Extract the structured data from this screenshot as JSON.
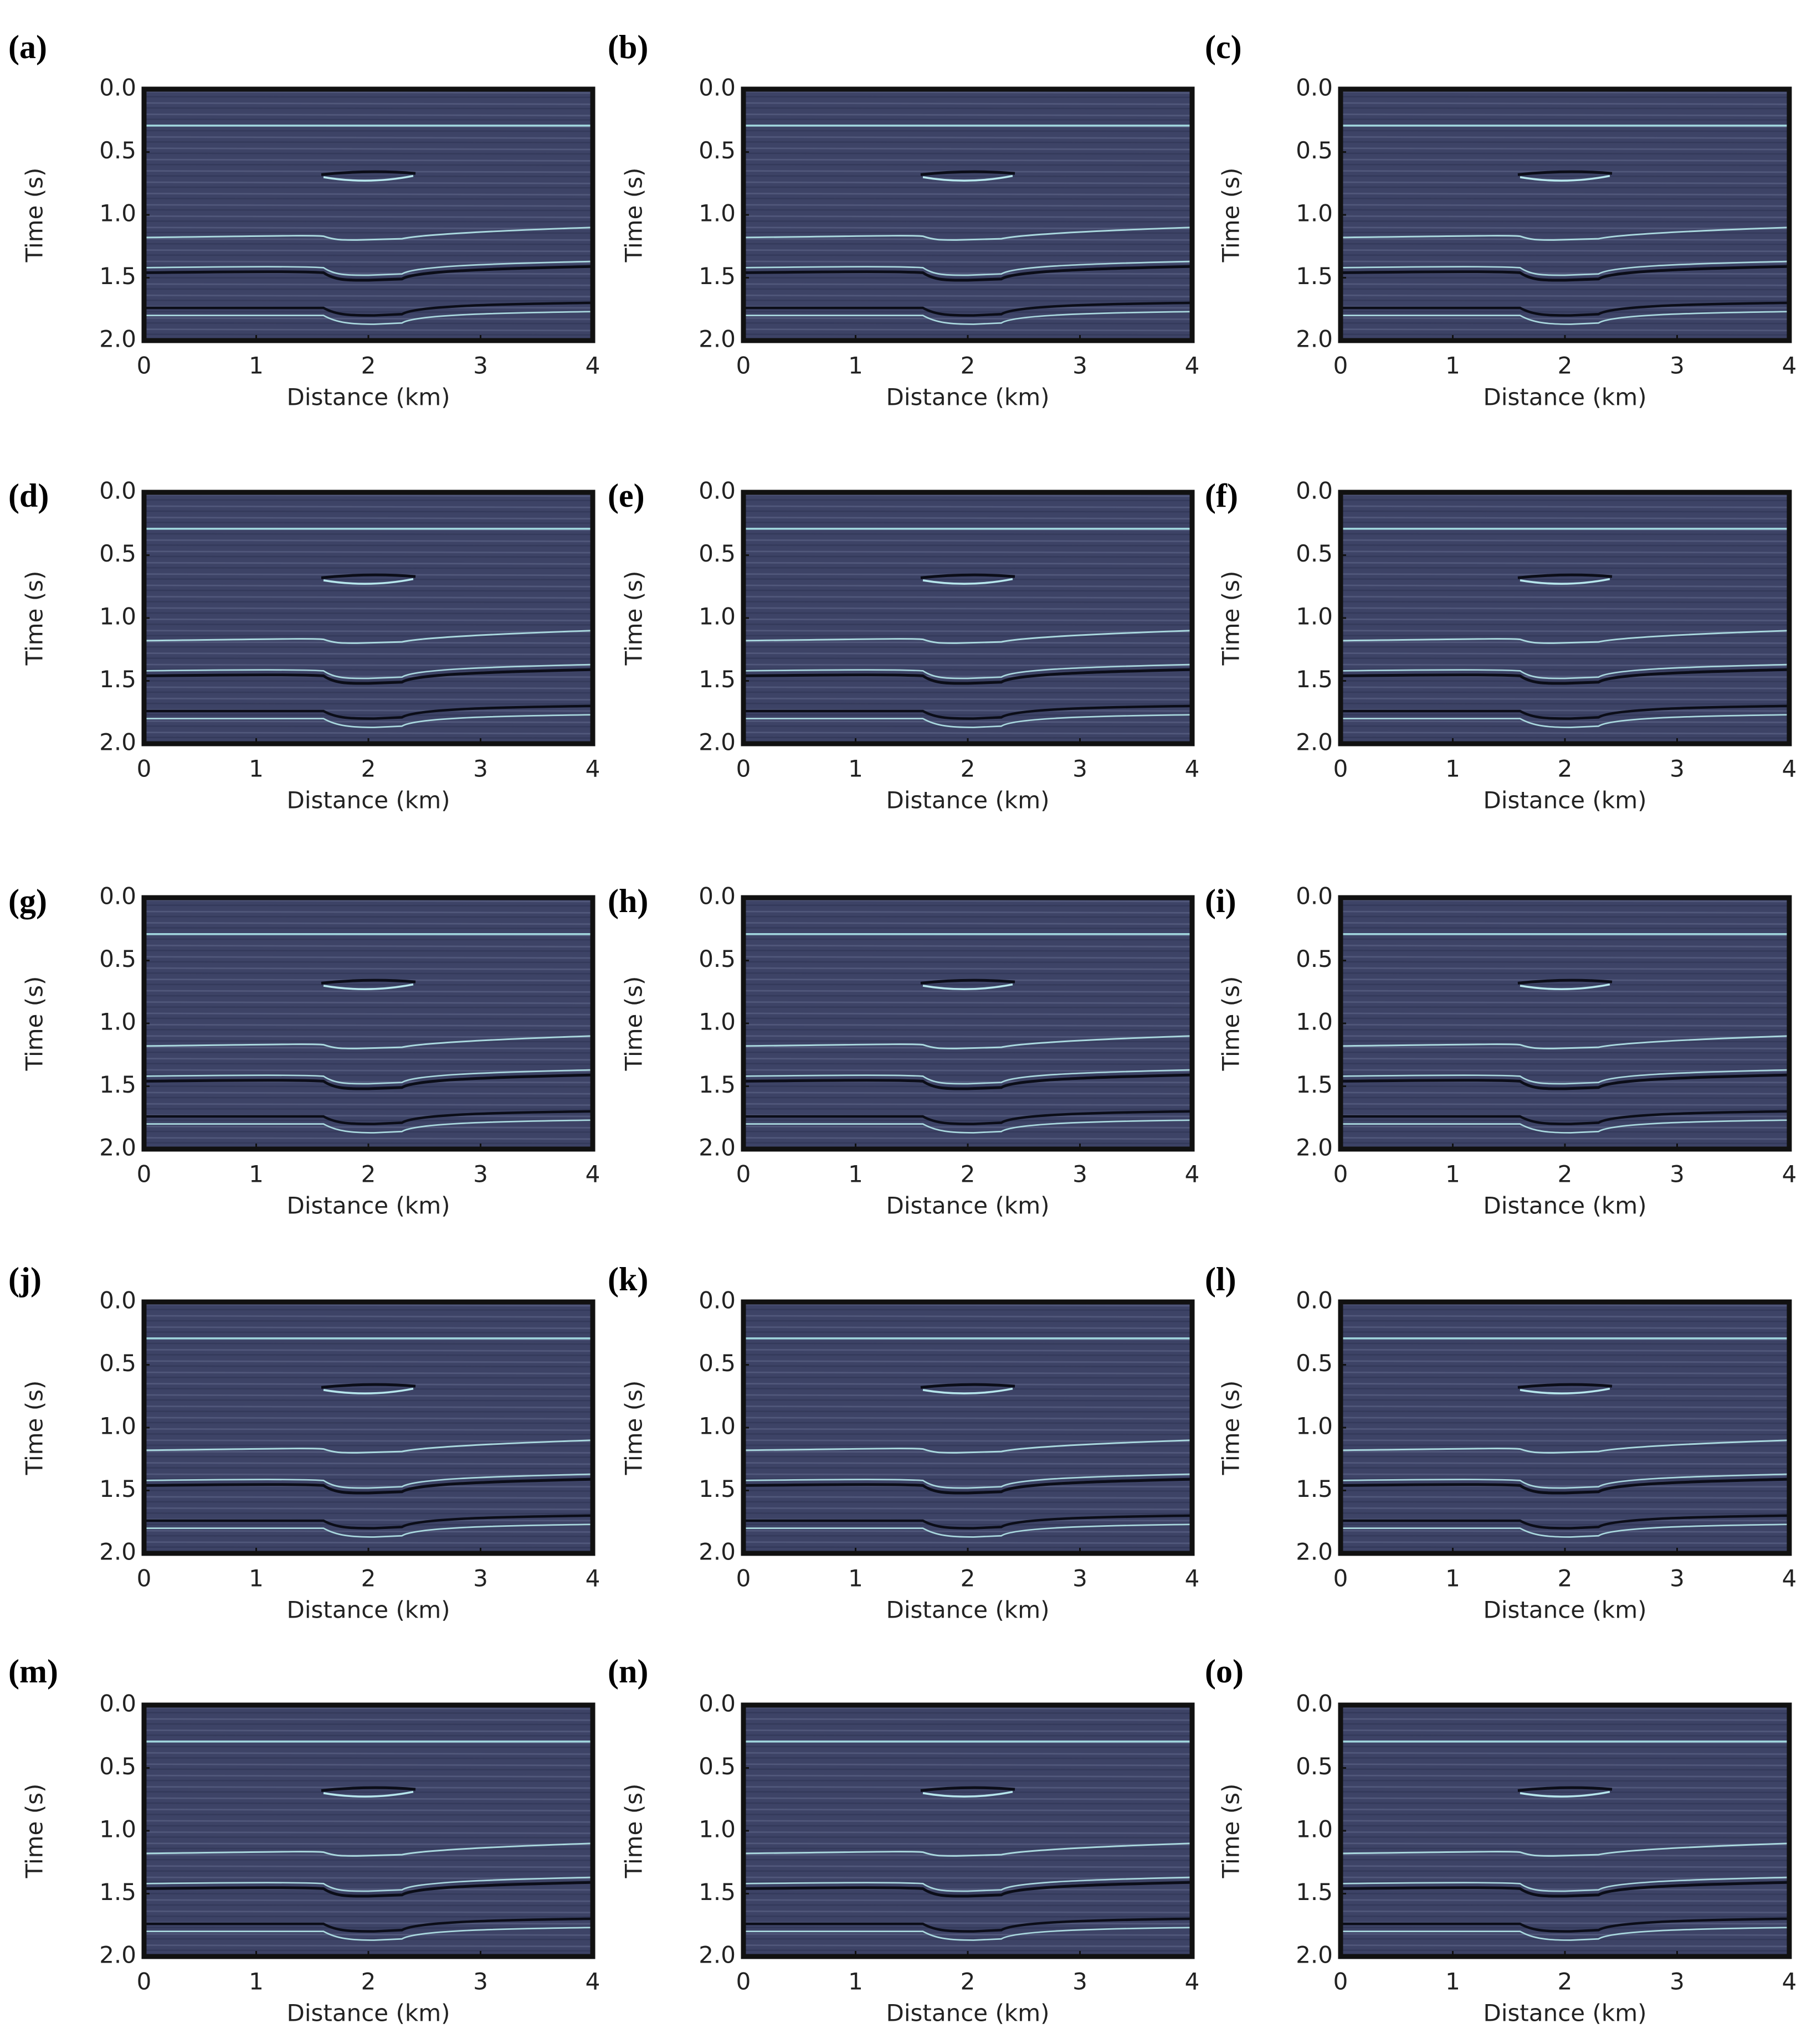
{
  "chart_data": [
    {
      "type": "image",
      "label": "(a)",
      "xlabel": "Distance (km)",
      "ylabel": "Time (s)",
      "color": "#3d4366",
      "xlim": [
        0,
        4
      ],
      "ylim": [
        2.0,
        0.0
      ],
      "xticks": [
        0,
        1,
        2,
        3,
        4
      ],
      "yticks": [
        {
          "value": 0,
          "label": "0.0"
        },
        0.5,
        {
          "value": 1,
          "label": "1.0"
        },
        1.5,
        {
          "value": 2,
          "label": "2.0"
        }
      ]
    },
    {
      "type": "image",
      "label": "(b)",
      "xlabel": "Distance (km)",
      "ylabel": "Time (s)",
      "color": "#3d4366",
      "xlim": [
        0,
        4
      ],
      "ylim": [
        2.0,
        0.0
      ],
      "xticks": [
        0,
        1,
        2,
        3,
        4
      ],
      "yticks": [
        {
          "value": 0,
          "label": "0.0"
        },
        0.5,
        {
          "value": 1,
          "label": "1.0"
        },
        1.5,
        {
          "value": 2,
          "label": "2.0"
        }
      ]
    },
    {
      "type": "image",
      "label": "(c)",
      "xlabel": "Distance (km)",
      "ylabel": "Time (s)",
      "color": "#3d4366",
      "xlim": [
        0,
        4
      ],
      "ylim": [
        2.0,
        0.0
      ],
      "xticks": [
        0,
        1,
        2,
        3,
        4
      ],
      "yticks": [
        {
          "value": 0,
          "label": "0.0"
        },
        0.5,
        {
          "value": 1,
          "label": "1.0"
        },
        1.5,
        {
          "value": 2,
          "label": "2.0"
        }
      ]
    },
    {
      "type": "image",
      "label": "(d)",
      "xlabel": "Distance (km)",
      "ylabel": "Time (s)",
      "color": "#3d4366",
      "xlim": [
        0,
        4
      ],
      "ylim": [
        2.0,
        0.0
      ],
      "xticks": [
        0,
        1,
        2,
        3,
        4
      ],
      "yticks": [
        {
          "value": 0,
          "label": "0.0"
        },
        0.5,
        {
          "value": 1,
          "label": "1.0"
        },
        1.5,
        {
          "value": 2,
          "label": "2.0"
        }
      ]
    },
    {
      "type": "image",
      "label": "(e)",
      "xlabel": "Distance (km)",
      "ylabel": "Time (s)",
      "color": "#3d4366",
      "xlim": [
        0,
        4
      ],
      "ylim": [
        2.0,
        0.0
      ],
      "xticks": [
        0,
        1,
        2,
        3,
        4
      ],
      "yticks": [
        {
          "value": 0,
          "label": "0.0"
        },
        0.5,
        {
          "value": 1,
          "label": "1.0"
        },
        1.5,
        {
          "value": 2,
          "label": "2.0"
        }
      ]
    },
    {
      "type": "image",
      "label": "(f)",
      "xlabel": "Distance (km)",
      "ylabel": "Time (s)",
      "color": "#3d4366",
      "xlim": [
        0,
        4
      ],
      "ylim": [
        2.0,
        0.0
      ],
      "xticks": [
        0,
        1,
        2,
        3,
        4
      ],
      "yticks": [
        {
          "value": 0,
          "label": "0.0"
        },
        0.5,
        {
          "value": 1,
          "label": "1.0"
        },
        1.5,
        {
          "value": 2,
          "label": "2.0"
        }
      ]
    },
    {
      "type": "image",
      "label": "(g)",
      "xlabel": "Distance (km)",
      "ylabel": "Time (s)",
      "color": "#3d4366",
      "xlim": [
        0,
        4
      ],
      "ylim": [
        2.0,
        0.0
      ],
      "xticks": [
        0,
        1,
        2,
        3,
        4
      ],
      "yticks": [
        {
          "value": 0,
          "label": "0.0"
        },
        0.5,
        {
          "value": 1,
          "label": "1.0"
        },
        1.5,
        {
          "value": 2,
          "label": "2.0"
        }
      ]
    },
    {
      "type": "image",
      "label": "(h)",
      "xlabel": "Distance (km)",
      "ylabel": "Time (s)",
      "color": "#3d4366",
      "xlim": [
        0,
        4
      ],
      "ylim": [
        2.0,
        0.0
      ],
      "xticks": [
        0,
        1,
        2,
        3,
        4
      ],
      "yticks": [
        {
          "value": 0,
          "label": "0.0"
        },
        0.5,
        {
          "value": 1,
          "label": "1.0"
        },
        1.5,
        {
          "value": 2,
          "label": "2.0"
        }
      ]
    },
    {
      "type": "image",
      "label": "(i)",
      "xlabel": "Distance (km)",
      "ylabel": "Time (s)",
      "color": "#3d4366",
      "xlim": [
        0,
        4
      ],
      "ylim": [
        2.0,
        0.0
      ],
      "xticks": [
        0,
        1,
        2,
        3,
        4
      ],
      "yticks": [
        {
          "value": 0,
          "label": "0.0"
        },
        0.5,
        {
          "value": 1,
          "label": "1.0"
        },
        1.5,
        {
          "value": 2,
          "label": "2.0"
        }
      ]
    },
    {
      "type": "image",
      "label": "(j)",
      "xlabel": "Distance (km)",
      "ylabel": "Time (s)",
      "color": "#3d4366",
      "xlim": [
        0,
        4
      ],
      "ylim": [
        2.0,
        0.0
      ],
      "xticks": [
        0,
        1,
        2,
        3,
        4
      ],
      "yticks": [
        {
          "value": 0,
          "label": "0.0"
        },
        0.5,
        {
          "value": 1,
          "label": "1.0"
        },
        1.5,
        {
          "value": 2,
          "label": "2.0"
        }
      ]
    },
    {
      "type": "image",
      "label": "(k)",
      "xlabel": "Distance (km)",
      "ylabel": "Time (s)",
      "color": "#3d4366",
      "xlim": [
        0,
        4
      ],
      "ylim": [
        2.0,
        0.0
      ],
      "xticks": [
        0,
        1,
        2,
        3,
        4
      ],
      "yticks": [
        {
          "value": 0,
          "label": "0.0"
        },
        0.5,
        {
          "value": 1,
          "label": "1.0"
        },
        1.5,
        {
          "value": 2,
          "label": "2.0"
        }
      ]
    },
    {
      "type": "image",
      "label": "(l)",
      "xlabel": "Distance (km)",
      "ylabel": "Time (s)",
      "color": "#3d4366",
      "xlim": [
        0,
        4
      ],
      "ylim": [
        2.0,
        0.0
      ],
      "xticks": [
        0,
        1,
        2,
        3,
        4
      ],
      "yticks": [
        {
          "value": 0,
          "label": "0.0"
        },
        0.5,
        {
          "value": 1,
          "label": "1.0"
        },
        1.5,
        {
          "value": 2,
          "label": "2.0"
        }
      ]
    },
    {
      "type": "image",
      "label": "(m)",
      "xlabel": "Distance (km)",
      "ylabel": "Time (s)",
      "color": "#3d4366",
      "xlim": [
        0,
        4
      ],
      "ylim": [
        2.0,
        0.0
      ],
      "xticks": [
        0,
        1,
        2,
        3,
        4
      ],
      "yticks": [
        {
          "value": 0,
          "label": "0.0"
        },
        0.5,
        {
          "value": 1,
          "label": "1.0"
        },
        1.5,
        {
          "value": 2,
          "label": "2.0"
        }
      ]
    },
    {
      "type": "image",
      "label": "(n)",
      "xlabel": "Distance (km)",
      "ylabel": "Time (s)",
      "color": "#3d4366",
      "xlim": [
        0,
        4
      ],
      "ylim": [
        2.0,
        0.0
      ],
      "xticks": [
        0,
        1,
        2,
        3,
        4
      ],
      "yticks": [
        {
          "value": 0,
          "label": "0.0"
        },
        0.5,
        {
          "value": 1,
          "label": "1.0"
        },
        1.5,
        {
          "value": 2,
          "label": "2.0"
        }
      ]
    },
    {
      "type": "image",
      "label": "(o)",
      "xlabel": "Distance (km)",
      "ylabel": "Time (s)",
      "color": "#3d4366",
      "xlim": [
        0,
        4
      ],
      "ylim": [
        2.0,
        0.0
      ],
      "xticks": [
        0,
        1,
        2,
        3,
        4
      ],
      "yticks": [
        {
          "value": 0,
          "label": "0.0"
        },
        0.5,
        {
          "value": 1,
          "label": "1.0"
        },
        1.5,
        {
          "value": 2,
          "label": "2.0"
        }
      ]
    }
  ]
}
